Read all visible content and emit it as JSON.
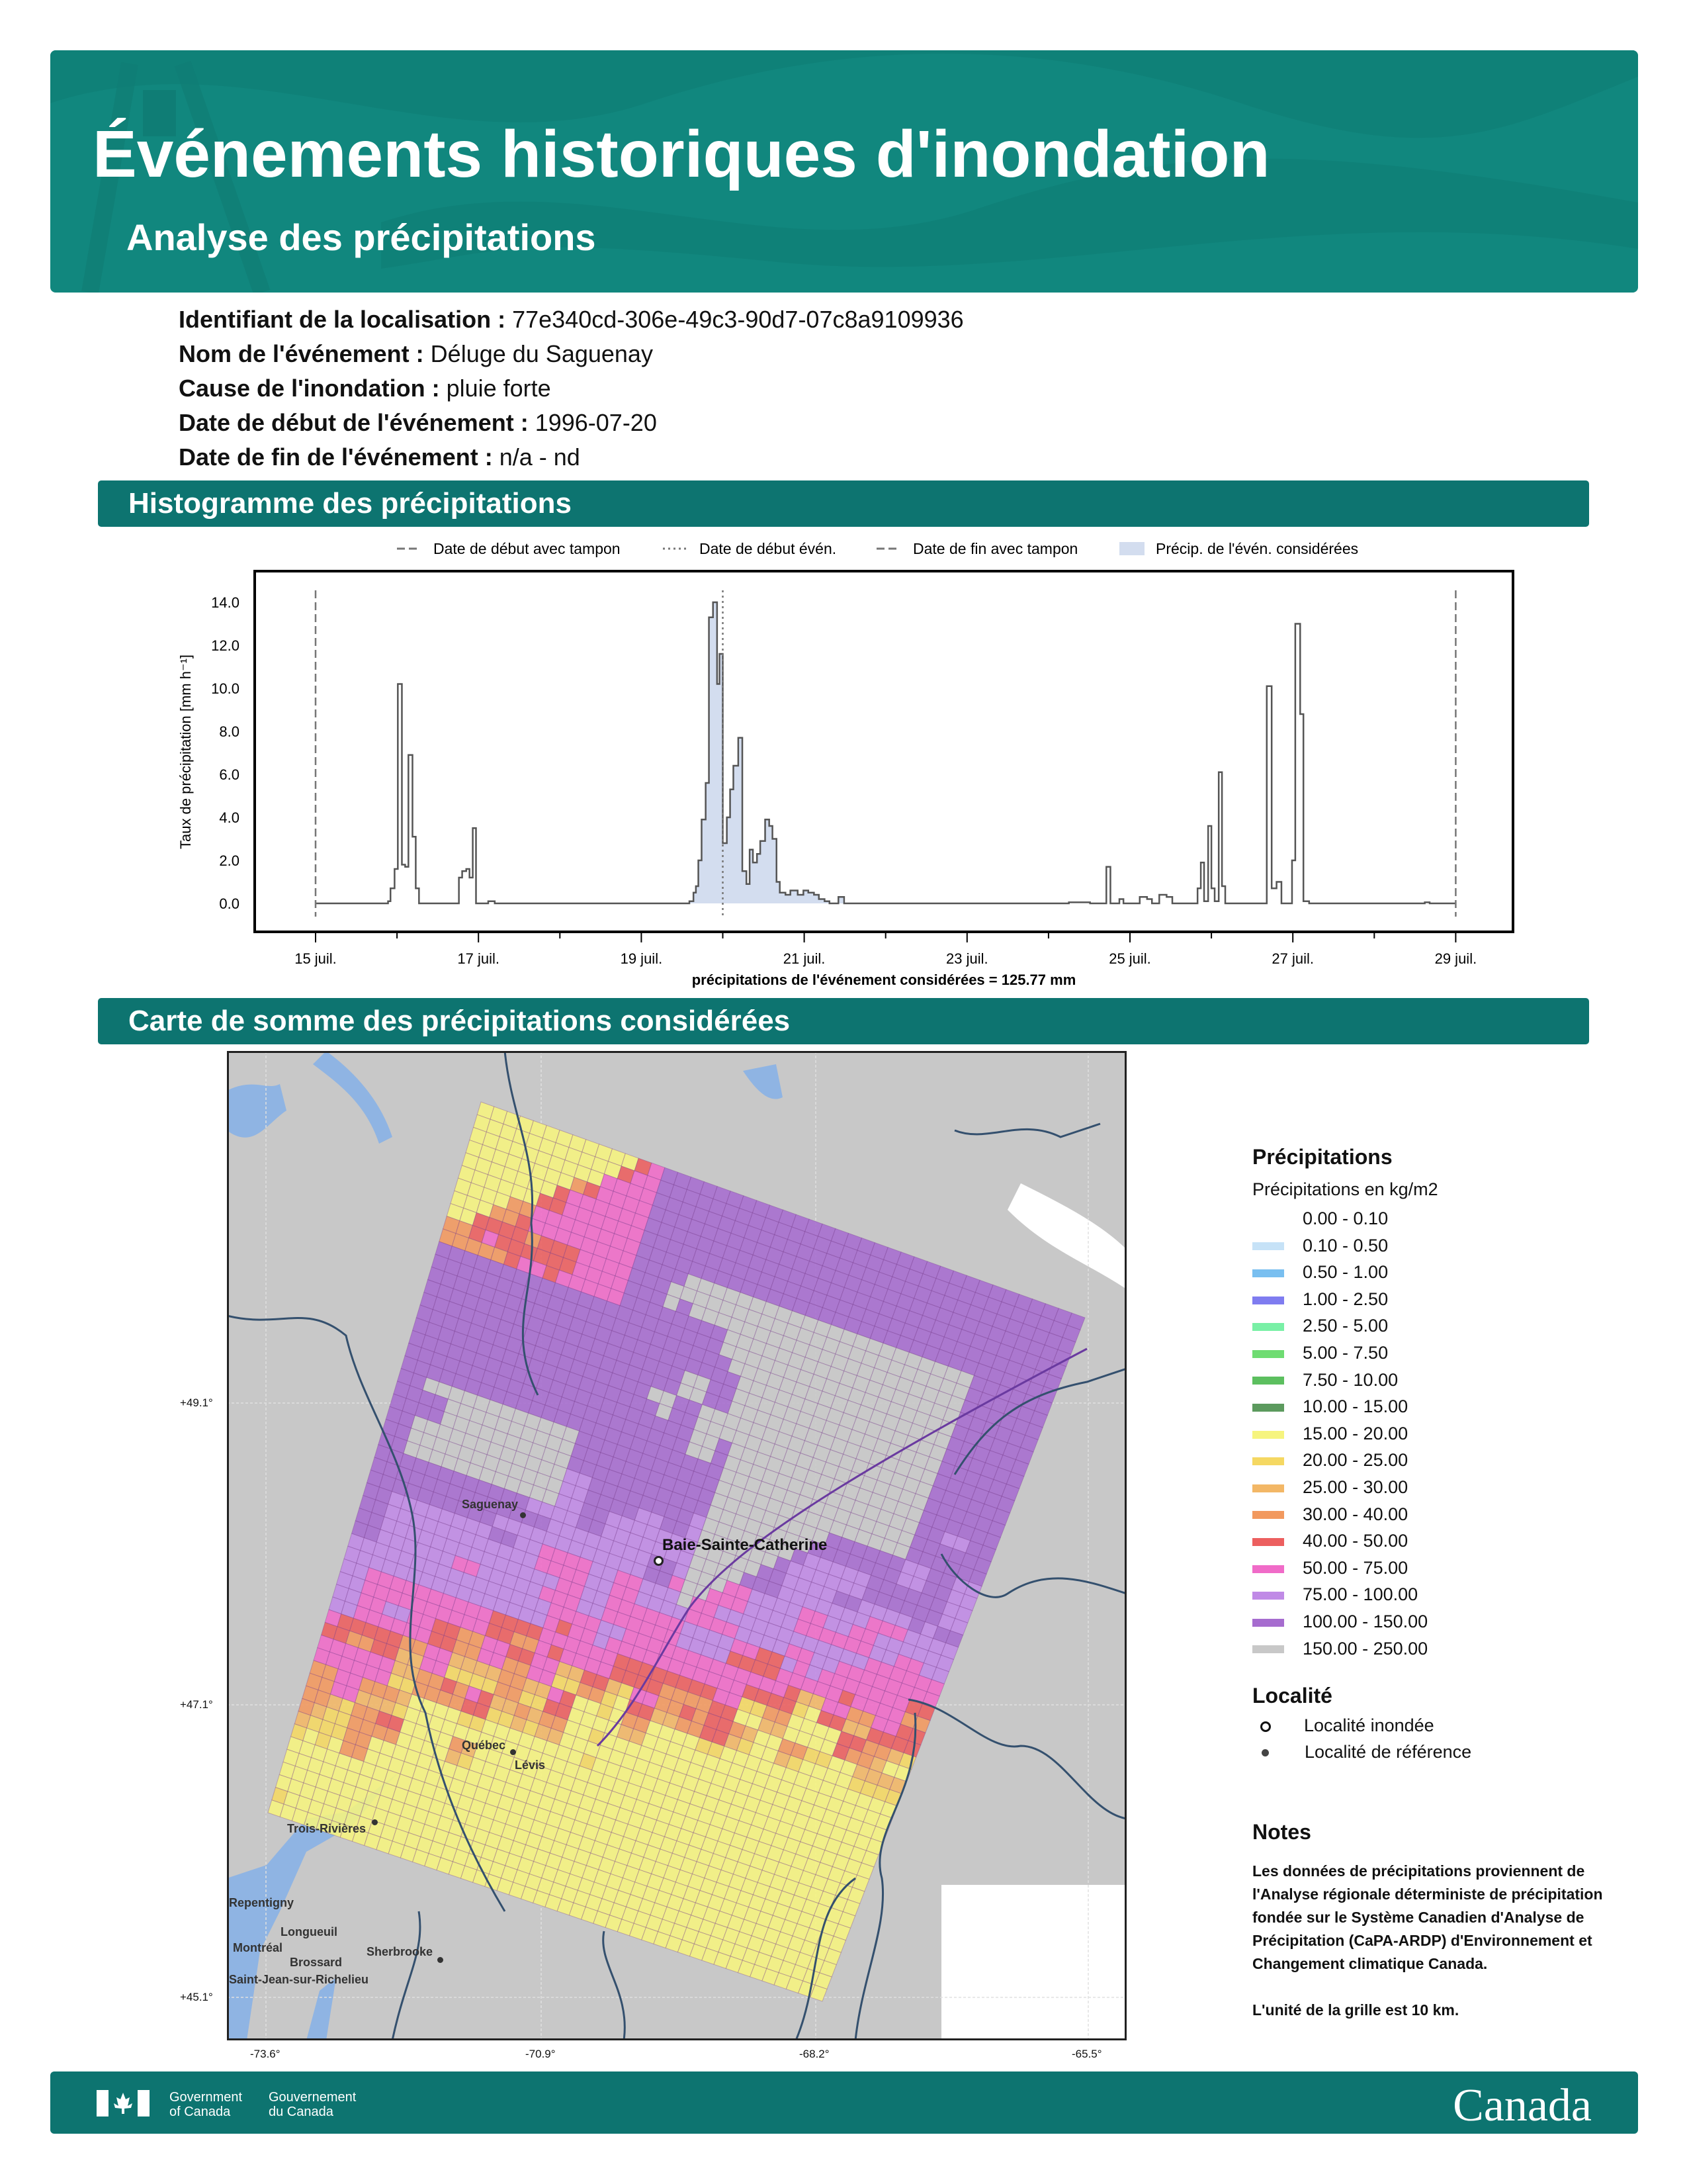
{
  "header": {
    "title": "Événements historiques d'inondation",
    "subtitle": "Analyse des précipitations"
  },
  "info": [
    {
      "label": "Identifiant de la localisation :",
      "value": "77e340cd-306e-49c3-90d7-07c8a9109936"
    },
    {
      "label": "Nom de l'événement :",
      "value": "Déluge du Saguenay"
    },
    {
      "label": "Cause de l'inondation :",
      "value": "pluie forte"
    },
    {
      "label": "Date de début de l'événement :",
      "value": "1996-07-20"
    },
    {
      "label": "Date de fin de l'événement :",
      "value": "n/a - nd"
    }
  ],
  "sections": {
    "histogram": "Histogramme des précipitations",
    "map": "Carte de somme des précipitations considérées"
  },
  "chart_data": {
    "type": "line",
    "title": "",
    "xlabel": "précipitations de l'événement considérées = 125.77 mm",
    "ylabel": "Taux de précipitation [mm h⁻¹]",
    "ylim": [
      -1.2,
      15.5
    ],
    "xlim": [
      -0.45,
      14.3
    ],
    "x_unit": "days since 15 juil. 1996",
    "yticks": [
      0,
      2,
      4,
      6,
      8,
      10,
      12,
      14
    ],
    "ytick_labels": [
      "0.0",
      "2.0",
      "4.0",
      "6.0",
      "8.0",
      "10.0",
      "12.0",
      "14.0"
    ],
    "xticks": [
      0,
      2,
      4,
      6,
      8,
      10,
      12,
      14
    ],
    "xtick_labels": [
      "15 juil.",
      "17 juil.",
      "19 juil.",
      "21 juil.",
      "23 juil.",
      "25 juil.",
      "27 juil.",
      "29 juil."
    ],
    "legend": [
      "Date de début avec tampon",
      "Date de début évén.",
      "Date de fin avec tampon",
      "Précip. de l'évén. considérées"
    ],
    "legend_position": "top",
    "vlines": {
      "start_buffer": 0,
      "event_start": 5.0,
      "end_buffer": 14
    },
    "event_fill_range": [
      4.59,
      6.49
    ],
    "series": [
      {
        "name": "précipitation",
        "points": [
          [
            0,
            0
          ],
          [
            0.89,
            0.1
          ],
          [
            0.92,
            0.7
          ],
          [
            0.97,
            1.6
          ],
          [
            1.01,
            10.2
          ],
          [
            1.06,
            1.8
          ],
          [
            1.1,
            1.7
          ],
          [
            1.14,
            6.9
          ],
          [
            1.19,
            3.1
          ],
          [
            1.23,
            0.7
          ],
          [
            1.27,
            0
          ],
          [
            1.76,
            1.2
          ],
          [
            1.8,
            1.5
          ],
          [
            1.85,
            1.6
          ],
          [
            1.89,
            1.2
          ],
          [
            1.93,
            3.5
          ],
          [
            1.97,
            0
          ],
          [
            2.12,
            0.1
          ],
          [
            2.2,
            0
          ],
          [
            4.59,
            0.1
          ],
          [
            4.64,
            0.5
          ],
          [
            4.67,
            0.8
          ],
          [
            4.7,
            2.0
          ],
          [
            4.74,
            3.9
          ],
          [
            4.79,
            5.6
          ],
          [
            4.83,
            13.3
          ],
          [
            4.88,
            14.0
          ],
          [
            4.93,
            10.2
          ],
          [
            4.96,
            11.6
          ],
          [
            5.0,
            2.8
          ],
          [
            5.05,
            4.0
          ],
          [
            5.09,
            5.3
          ],
          [
            5.13,
            6.4
          ],
          [
            5.19,
            7.7
          ],
          [
            5.24,
            1.5
          ],
          [
            5.29,
            0.9
          ],
          [
            5.33,
            2.5
          ],
          [
            5.37,
            1.9
          ],
          [
            5.42,
            2.3
          ],
          [
            5.46,
            2.9
          ],
          [
            5.52,
            3.9
          ],
          [
            5.57,
            3.6
          ],
          [
            5.61,
            3.0
          ],
          [
            5.66,
            1.0
          ],
          [
            5.7,
            0.5
          ],
          [
            5.77,
            0.4
          ],
          [
            5.83,
            0.6
          ],
          [
            5.92,
            0.4
          ],
          [
            5.99,
            0.6
          ],
          [
            6.05,
            0.5
          ],
          [
            6.12,
            0.4
          ],
          [
            6.18,
            0.2
          ],
          [
            6.25,
            0.1
          ],
          [
            6.31,
            0
          ],
          [
            6.42,
            0.3
          ],
          [
            6.49,
            0
          ],
          [
            9.25,
            0.05
          ],
          [
            9.51,
            0
          ],
          [
            9.71,
            1.7
          ],
          [
            9.76,
            0
          ],
          [
            9.87,
            0.2
          ],
          [
            9.92,
            0
          ],
          [
            10.12,
            0.3
          ],
          [
            10.21,
            0.2
          ],
          [
            10.27,
            0
          ],
          [
            10.36,
            0.4
          ],
          [
            10.45,
            0.3
          ],
          [
            10.52,
            0
          ],
          [
            10.83,
            0.7
          ],
          [
            10.87,
            1.9
          ],
          [
            10.91,
            0.1
          ],
          [
            10.96,
            3.6
          ],
          [
            11.0,
            0.7
          ],
          [
            11.04,
            0.1
          ],
          [
            11.09,
            6.1
          ],
          [
            11.13,
            0.8
          ],
          [
            11.17,
            0
          ],
          [
            11.68,
            10.1
          ],
          [
            11.74,
            0.7
          ],
          [
            11.8,
            1.0
          ],
          [
            11.86,
            0
          ],
          [
            11.99,
            2.0
          ],
          [
            12.03,
            13.0
          ],
          [
            12.09,
            8.8
          ],
          [
            12.13,
            0.1
          ],
          [
            12.2,
            0
          ],
          [
            13.62,
            0.05
          ],
          [
            13.68,
            0
          ],
          [
            14,
            0
          ]
        ]
      }
    ]
  },
  "map": {
    "lat_labels": [
      "+49.1°",
      "+47.1°",
      "+45.1°"
    ],
    "lon_labels": [
      "-73.6°",
      "-70.9°",
      "-68.2°",
      "-65.5°"
    ],
    "cities": {
      "saguenay": "Saguenay",
      "baie": "Baie-Sainte-Catherine",
      "quebec": "Québec",
      "levis": "Lévis",
      "trois": "Trois-Rivières",
      "repentigny": "Repentigny",
      "longueuil": "Longueuil",
      "montreal": "Montréal",
      "brossard": "Brossard",
      "stjean": "Saint-Jean-sur-Richelieu",
      "sherbrooke": "Sherbrooke"
    }
  },
  "legend": {
    "title": "Précipitations",
    "subtitle": "Précipitations en kg/m2",
    "classes": [
      {
        "label": "0.00 - 0.10",
        "color": "#ffffff"
      },
      {
        "label": "0.10 - 0.50",
        "color": "#c6e2f7"
      },
      {
        "label": "0.50 - 1.00",
        "color": "#79bff0"
      },
      {
        "label": "1.00 - 2.50",
        "color": "#7f7cf0"
      },
      {
        "label": "2.50 - 5.00",
        "color": "#79f0a6"
      },
      {
        "label": "5.00 - 7.50",
        "color": "#6fdc72"
      },
      {
        "label": "7.50 - 10.00",
        "color": "#5cbf5f"
      },
      {
        "label": "10.00 - 15.00",
        "color": "#5c9a5e"
      },
      {
        "label": "15.00 - 20.00",
        "color": "#f6f47e"
      },
      {
        "label": "20.00 - 25.00",
        "color": "#f5d862"
      },
      {
        "label": "25.00 - 30.00",
        "color": "#f3b766"
      },
      {
        "label": "30.00 - 40.00",
        "color": "#f2995e"
      },
      {
        "label": "40.00 - 50.00",
        "color": "#ec5f5f"
      },
      {
        "label": "50.00 - 75.00",
        "color": "#f06bc8"
      },
      {
        "label": "75.00 - 100.00",
        "color": "#c08ae6"
      },
      {
        "label": "100.00 - 150.00",
        "color": "#a66ccf"
      },
      {
        "label": "150.00 - 250.00",
        "color": "#c8c8c8"
      }
    ],
    "locality_title": "Localité",
    "flooded": "Localité inondée",
    "reference": "Localité de référence",
    "notes_title": "Notes",
    "notes_text": "Les données de précipitations proviennent de l'Analyse régionale déterministe de précipitation fondée sur le Système Canadien d'Analyse de Précipitation (CaPA-ARDP) d'Environnement et Changement climatique Canada.",
    "grid_note": "L'unité de la grille est 10 km."
  },
  "footer": {
    "gov_en": "Government\nof Canada",
    "gov_fr": "Gouvernement\ndu Canada",
    "wordmark": "Canada"
  },
  "colors": {
    "banner": "#11877e",
    "section": "#0d7470",
    "water": "#8fb4e3"
  }
}
